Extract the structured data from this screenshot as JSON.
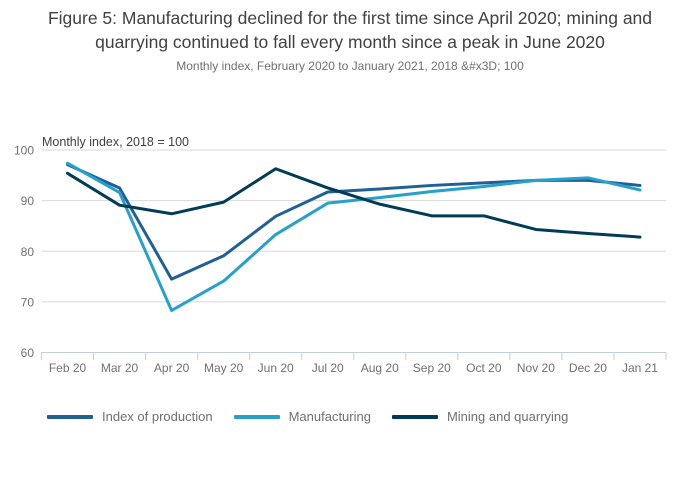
{
  "page": {
    "title": "Figure 5: Manufacturing declined for the first time since April 2020; mining and quarrying continued to fall every month since a peak in June 2020",
    "subtitle": "Monthly index, February 2020 to January 2021, 2018 &#x3D; 100"
  },
  "chart_data": {
    "type": "line",
    "title": "Figure 5: Manufacturing declined for the first time since April 2020; mining and quarrying continued to fall every month since a peak in June 2020",
    "subtitle": "Monthly index, February 2020 to January 2021, 2018 &#x3D; 100",
    "axis_title": "Monthly index, 2018 = 100",
    "categories": [
      "Feb 20",
      "Mar 20",
      "Apr 20",
      "May 20",
      "Jun 20",
      "Jul 20",
      "Aug 20",
      "Sep 20",
      "Oct 20",
      "Nov 20",
      "Dec 20",
      "Jan 21"
    ],
    "series": [
      {
        "name": "Index of production",
        "color": "#206095",
        "values": [
          97.1,
          92.5,
          74.5,
          79.1,
          86.9,
          91.7,
          92.3,
          93.0,
          93.5,
          94.0,
          94.0,
          93.0
        ]
      },
      {
        "name": "Manufacturing",
        "color": "#27A0CC",
        "values": [
          97.4,
          91.6,
          68.3,
          74.1,
          83.3,
          89.5,
          90.6,
          91.8,
          92.8,
          94.0,
          94.5,
          92.1
        ]
      },
      {
        "name": "Mining and quarrying",
        "color": "#003C57",
        "values": [
          95.4,
          89.1,
          87.4,
          89.7,
          96.3,
          92.5,
          89.3,
          87.0,
          87.0,
          84.3,
          83.5,
          82.8
        ]
      }
    ],
    "ylim": [
      60,
      100
    ],
    "yticks": [
      100,
      90,
      80,
      70,
      60
    ],
    "grid": "horizontal-only",
    "legend_position": "bottom-left",
    "colors": {
      "gridline": "#d9d9d9",
      "axis_line": "#c3cedd",
      "tick_label": "#707071",
      "axis_title_text": "#414042",
      "title_text": "#414042"
    }
  }
}
